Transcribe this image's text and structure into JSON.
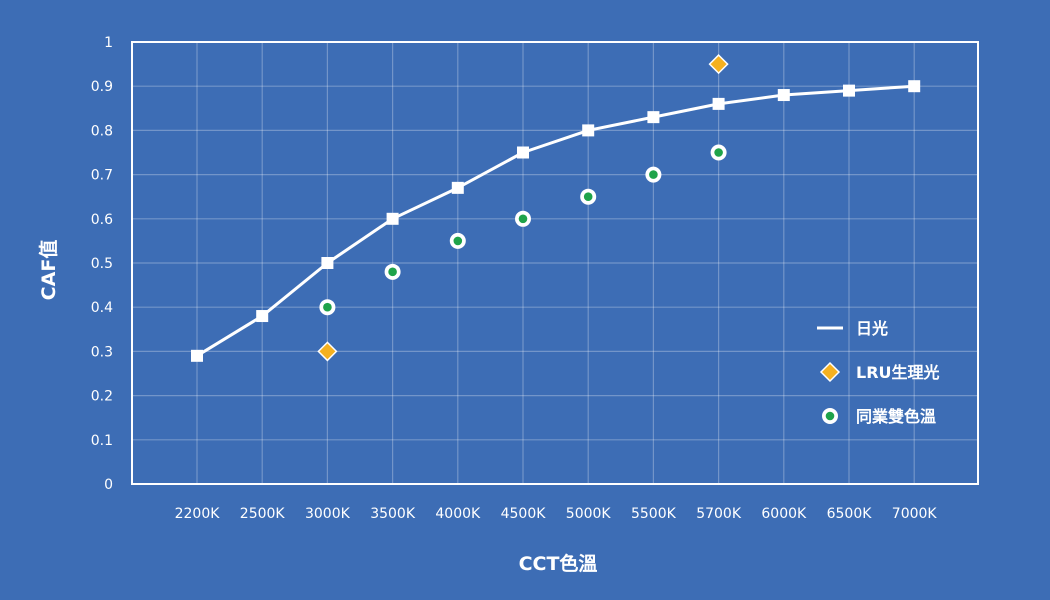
{
  "chart_data": {
    "type": "line",
    "xlabel": "CCT色溫",
    "ylabel": "CAF值",
    "categories": [
      "2200K",
      "2500K",
      "3000K",
      "3500K",
      "4000K",
      "4500K",
      "5000K",
      "5500K",
      "5700K",
      "6000K",
      "6500K",
      "7000K"
    ],
    "ylim": [
      0,
      1
    ],
    "yticks": [
      "0",
      "0.1",
      "0.2",
      "0.3",
      "0.4",
      "0.5",
      "0.6",
      "0.7",
      "0.8",
      "0.9",
      "1"
    ],
    "grid": true,
    "legend_position": "right",
    "series": [
      {
        "name": "日光",
        "kind": "line",
        "marker": "square",
        "color": "#ffffff",
        "values": [
          0.29,
          0.38,
          0.5,
          0.6,
          0.67,
          0.75,
          0.8,
          0.83,
          0.86,
          0.88,
          0.89,
          0.9
        ]
      },
      {
        "name": "LRU生理光",
        "kind": "scatter",
        "marker": "diamond",
        "color": "#f5b120",
        "points": [
          {
            "x": "3000K",
            "y": 0.3
          },
          {
            "x": "5700K",
            "y": 0.95
          }
        ]
      },
      {
        "name": "同業雙色溫",
        "kind": "scatter",
        "marker": "circle",
        "color": "#1fa34a",
        "points": [
          {
            "x": "3000K",
            "y": 0.4
          },
          {
            "x": "3500K",
            "y": 0.48
          },
          {
            "x": "4000K",
            "y": 0.55
          },
          {
            "x": "4500K",
            "y": 0.6
          },
          {
            "x": "5000K",
            "y": 0.65
          },
          {
            "x": "5500K",
            "y": 0.7
          },
          {
            "x": "5700K",
            "y": 0.75
          }
        ]
      }
    ]
  }
}
